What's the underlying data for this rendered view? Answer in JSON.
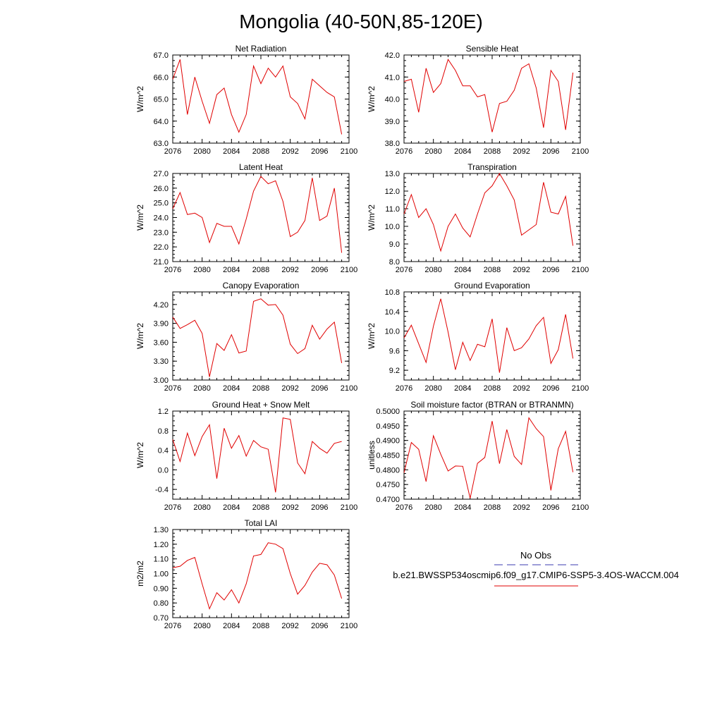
{
  "figure": {
    "title": "Mongolia (40-50N,85-120E)",
    "legend": {
      "obs_label": "No Obs",
      "obs_color": "#3b3bb0",
      "model_label": "b.e21.BWSSP534oscmip6.f09_g17.CMIP6-SSP5-3.4OS-WACCM.004",
      "model_color": "#e00000"
    }
  },
  "chart_data": [
    {
      "type": "line",
      "title": "Net Radiation",
      "ylabel": "W/m^2",
      "xlim": [
        2076,
        2100
      ],
      "ylim": [
        63.0,
        67.0
      ],
      "x_ticks": [
        "2076",
        "2080",
        "2084",
        "2088",
        "2092",
        "2096",
        "2100"
      ],
      "y_ticks": [
        "63.0",
        "64.0",
        "65.0",
        "66.0",
        "67.0"
      ],
      "x": [
        2076,
        2077,
        2078,
        2079,
        2080,
        2081,
        2082,
        2083,
        2084,
        2085,
        2086,
        2087,
        2088,
        2089,
        2090,
        2091,
        2092,
        2093,
        2094,
        2095,
        2096,
        2097,
        2098,
        2099
      ],
      "values": [
        65.9,
        66.8,
        64.3,
        66.0,
        64.9,
        63.9,
        65.2,
        65.5,
        64.3,
        63.5,
        64.3,
        66.5,
        65.7,
        66.4,
        66.0,
        66.5,
        65.1,
        64.8,
        64.1,
        65.9,
        65.6,
        65.3,
        65.1,
        63.4
      ]
    },
    {
      "type": "line",
      "title": "Sensible Heat",
      "ylabel": "W/m^2",
      "xlim": [
        2076,
        2100
      ],
      "ylim": [
        38.0,
        42.0
      ],
      "x_ticks": [
        "2076",
        "2080",
        "2084",
        "2088",
        "2092",
        "2096",
        "2100"
      ],
      "y_ticks": [
        "38.0",
        "39.0",
        "40.0",
        "41.0",
        "42.0"
      ],
      "x": [
        2076,
        2077,
        2078,
        2079,
        2080,
        2081,
        2082,
        2083,
        2084,
        2085,
        2086,
        2087,
        2088,
        2089,
        2090,
        2091,
        2092,
        2093,
        2094,
        2095,
        2096,
        2097,
        2098,
        2099
      ],
      "values": [
        40.8,
        40.9,
        39.4,
        41.4,
        40.3,
        40.7,
        41.8,
        41.3,
        40.6,
        40.6,
        40.1,
        40.2,
        38.5,
        39.8,
        39.9,
        40.4,
        41.4,
        41.6,
        40.5,
        38.7,
        41.3,
        40.8,
        38.6,
        41.2
      ]
    },
    {
      "type": "line",
      "title": "Latent Heat",
      "ylabel": "W/m^2",
      "xlim": [
        2076,
        2100
      ],
      "ylim": [
        21.0,
        27.0
      ],
      "x_ticks": [
        "2076",
        "2080",
        "2084",
        "2088",
        "2092",
        "2096",
        "2100"
      ],
      "y_ticks": [
        "21.0",
        "22.0",
        "23.0",
        "24.0",
        "25.0",
        "26.0",
        "27.0"
      ],
      "x": [
        2076,
        2077,
        2078,
        2079,
        2080,
        2081,
        2082,
        2083,
        2084,
        2085,
        2086,
        2087,
        2088,
        2089,
        2090,
        2091,
        2092,
        2093,
        2094,
        2095,
        2096,
        2097,
        2098,
        2099
      ],
      "values": [
        24.6,
        25.7,
        24.2,
        24.3,
        24.0,
        22.3,
        23.6,
        23.4,
        23.4,
        22.2,
        23.9,
        25.8,
        26.8,
        26.3,
        26.5,
        25.1,
        22.7,
        23.0,
        23.8,
        26.7,
        23.8,
        24.1,
        26.0,
        21.6
      ]
    },
    {
      "type": "line",
      "title": "Transpiration",
      "ylabel": "W/m^2",
      "xlim": [
        2076,
        2100
      ],
      "ylim": [
        8.0,
        13.0
      ],
      "x_ticks": [
        "2076",
        "2080",
        "2084",
        "2088",
        "2092",
        "2096",
        "2100"
      ],
      "y_ticks": [
        "8.0",
        "9.0",
        "10.0",
        "11.0",
        "12.0",
        "13.0"
      ],
      "x": [
        2076,
        2077,
        2078,
        2079,
        2080,
        2081,
        2082,
        2083,
        2084,
        2085,
        2086,
        2087,
        2088,
        2089,
        2090,
        2091,
        2092,
        2093,
        2094,
        2095,
        2096,
        2097,
        2098,
        2099
      ],
      "values": [
        10.7,
        11.8,
        10.5,
        11.0,
        10.1,
        8.6,
        10.0,
        10.7,
        9.9,
        9.4,
        10.7,
        11.9,
        12.3,
        13.0,
        12.3,
        11.5,
        9.5,
        9.8,
        10.1,
        12.5,
        10.8,
        10.7,
        11.7,
        8.9
      ]
    },
    {
      "type": "line",
      "title": "Canopy Evaporation",
      "ylabel": "W/m^2",
      "xlim": [
        2076,
        2100
      ],
      "ylim": [
        3.0,
        4.4
      ],
      "x_ticks": [
        "2076",
        "2080",
        "2084",
        "2088",
        "2092",
        "2096",
        "2100"
      ],
      "y_ticks": [
        "3.00",
        "3.30",
        "3.60",
        "3.90",
        "4.20"
      ],
      "x": [
        2076,
        2077,
        2078,
        2079,
        2080,
        2081,
        2082,
        2083,
        2084,
        2085,
        2086,
        2087,
        2088,
        2089,
        2090,
        2091,
        2092,
        2093,
        2094,
        2095,
        2096,
        2097,
        2098,
        2099
      ],
      "values": [
        4.0,
        3.82,
        3.88,
        3.95,
        3.74,
        3.05,
        3.58,
        3.47,
        3.72,
        3.43,
        3.46,
        4.25,
        4.29,
        4.19,
        4.2,
        4.03,
        3.57,
        3.42,
        3.5,
        3.87,
        3.65,
        3.81,
        3.92,
        3.27
      ]
    },
    {
      "type": "line",
      "title": "Ground Evaporation",
      "ylabel": "W/m^2",
      "xlim": [
        2076,
        2100
      ],
      "ylim": [
        9.0,
        10.8
      ],
      "x_ticks": [
        "2076",
        "2080",
        "2084",
        "2088",
        "2092",
        "2096",
        "2100"
      ],
      "y_ticks": [
        "9.2",
        "9.6",
        "10.0",
        "10.4",
        "10.8"
      ],
      "x": [
        2076,
        2077,
        2078,
        2079,
        2080,
        2081,
        2082,
        2083,
        2084,
        2085,
        2086,
        2087,
        2088,
        2089,
        2090,
        2091,
        2092,
        2093,
        2094,
        2095,
        2096,
        2097,
        2098,
        2099
      ],
      "values": [
        9.86,
        10.12,
        9.74,
        9.36,
        10.1,
        10.66,
        9.98,
        9.21,
        9.77,
        9.4,
        9.73,
        9.68,
        10.25,
        9.15,
        10.07,
        9.6,
        9.66,
        9.84,
        10.11,
        10.28,
        9.34,
        9.62,
        10.34,
        9.44
      ]
    },
    {
      "type": "line",
      "title": "Ground Heat + Snow Melt",
      "ylabel": "W/m^2",
      "xlim": [
        2076,
        2100
      ],
      "ylim": [
        -0.6,
        1.2
      ],
      "x_ticks": [
        "2076",
        "2080",
        "2084",
        "2088",
        "2092",
        "2096",
        "2100"
      ],
      "y_ticks": [
        "-0.4",
        "0.0",
        "0.4",
        "0.8",
        "1.2"
      ],
      "x": [
        2076,
        2077,
        2078,
        2079,
        2080,
        2081,
        2082,
        2083,
        2084,
        2085,
        2086,
        2087,
        2088,
        2089,
        2090,
        2091,
        2092,
        2093,
        2094,
        2095,
        2096,
        2097,
        2098,
        2099
      ],
      "values": [
        0.62,
        0.17,
        0.75,
        0.29,
        0.68,
        0.92,
        -0.18,
        0.85,
        0.44,
        0.7,
        0.28,
        0.6,
        0.47,
        0.42,
        -0.46,
        1.06,
        1.03,
        0.14,
        -0.08,
        0.58,
        0.44,
        0.34,
        0.54,
        0.58
      ]
    },
    {
      "type": "line",
      "title": "Soil moisture factor (BTRAN or BTRANMN)",
      "ylabel": "unitless",
      "xlim": [
        2076,
        2100
      ],
      "ylim": [
        0.47,
        0.5
      ],
      "x_ticks": [
        "2076",
        "2080",
        "2084",
        "2088",
        "2092",
        "2096",
        "2100"
      ],
      "y_ticks": [
        "0.4700",
        "0.4750",
        "0.4800",
        "0.4850",
        "0.4900",
        "0.4950",
        "0.5000"
      ],
      "x": [
        2076,
        2077,
        2078,
        2079,
        2080,
        2081,
        2082,
        2083,
        2084,
        2085,
        2086,
        2087,
        2088,
        2089,
        2090,
        2091,
        2092,
        2093,
        2094,
        2095,
        2096,
        2097,
        2098,
        2099
      ],
      "values": [
        0.479,
        0.4893,
        0.487,
        0.476,
        0.4916,
        0.4853,
        0.4796,
        0.4813,
        0.4812,
        0.4703,
        0.4822,
        0.4842,
        0.4966,
        0.4821,
        0.4937,
        0.4846,
        0.4818,
        0.4977,
        0.494,
        0.4913,
        0.473,
        0.4872,
        0.4931,
        0.4792
      ]
    },
    {
      "type": "line",
      "title": "Total LAI",
      "ylabel": "m2/m2",
      "xlim": [
        2076,
        2100
      ],
      "ylim": [
        0.7,
        1.3
      ],
      "x_ticks": [
        "2076",
        "2080",
        "2084",
        "2088",
        "2092",
        "2096",
        "2100"
      ],
      "y_ticks": [
        "0.70",
        "0.80",
        "0.90",
        "1.00",
        "1.10",
        "1.20",
        "1.30"
      ],
      "x": [
        2076,
        2077,
        2078,
        2079,
        2080,
        2081,
        2082,
        2083,
        2084,
        2085,
        2086,
        2087,
        2088,
        2089,
        2090,
        2091,
        2092,
        2093,
        2094,
        2095,
        2096,
        2097,
        2098,
        2099
      ],
      "values": [
        1.04,
        1.05,
        1.09,
        1.11,
        0.93,
        0.76,
        0.87,
        0.82,
        0.89,
        0.8,
        0.93,
        1.12,
        1.13,
        1.21,
        1.2,
        1.17,
        1.0,
        0.86,
        0.92,
        1.01,
        1.07,
        1.06,
        0.99,
        0.83
      ]
    }
  ]
}
